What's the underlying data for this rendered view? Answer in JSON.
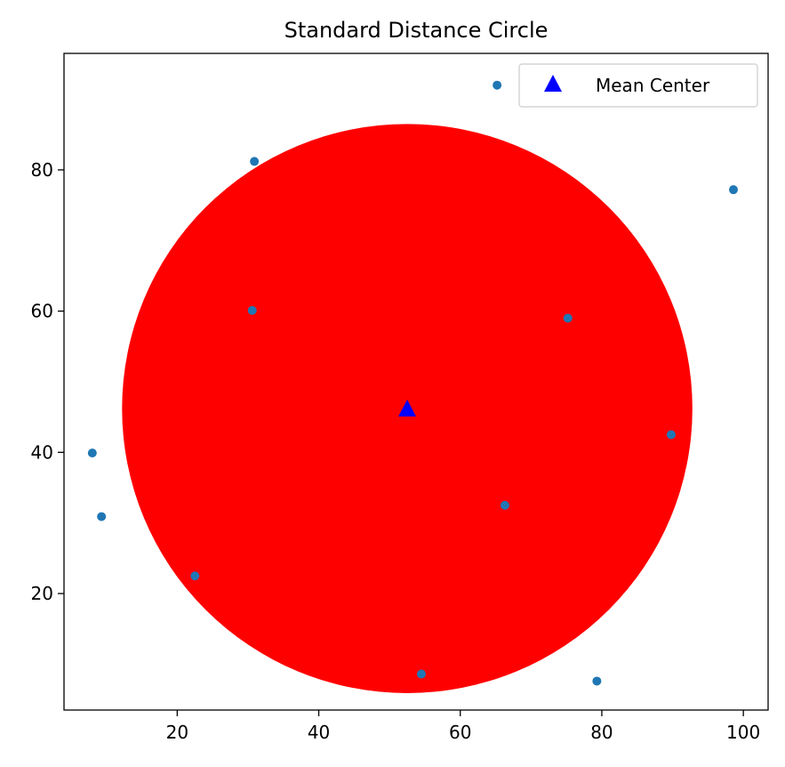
{
  "chart_data": {
    "type": "scatter",
    "title": "Standard Distance Circle",
    "xlabel": "",
    "ylabel": "",
    "xlim": [
      4,
      103.5
    ],
    "ylim": [
      3.5,
      96.5
    ],
    "xticks": [
      20,
      40,
      60,
      80,
      100
    ],
    "yticks": [
      20,
      40,
      60,
      80
    ],
    "grid": false,
    "points": {
      "color": "#1f77b4",
      "x": [
        65.2,
        30.9,
        98.6,
        30.6,
        75.2,
        89.8,
        8.0,
        66.3,
        9.3,
        22.5,
        54.5,
        79.3
      ],
      "y": [
        92.0,
        81.2,
        77.2,
        60.1,
        59.0,
        42.5,
        39.9,
        32.5,
        30.9,
        22.5,
        8.6,
        7.6
      ]
    },
    "mean_center": {
      "label": "Mean Center",
      "x": 52.5,
      "y": 46.2,
      "color": "#0000ff",
      "marker": "triangle"
    },
    "standard_distance": {
      "radius": 40.3,
      "color": "#ff0000"
    },
    "legend": {
      "position": "top-right",
      "entries": [
        "Mean Center"
      ]
    }
  }
}
